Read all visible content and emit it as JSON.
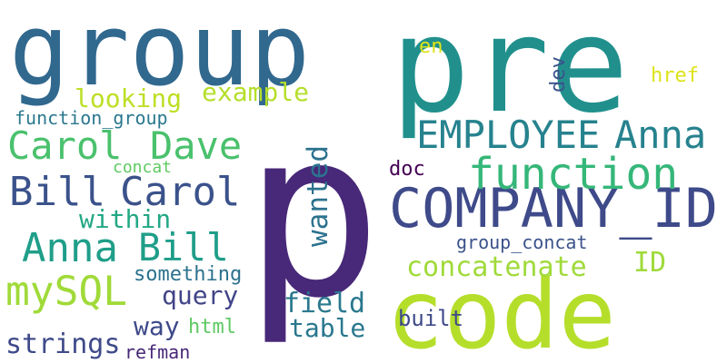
{
  "words": [
    {
      "text": "group",
      "color": "#31688e",
      "vertical": false
    },
    {
      "text": "pre",
      "color": "#21908d",
      "vertical": false
    },
    {
      "text": "p",
      "color": "#482878",
      "vertical": false
    },
    {
      "text": "code",
      "color": "#b5de2b",
      "vertical": false
    },
    {
      "text": "COMPANY_ID",
      "color": "#3e4a89",
      "vertical": false
    },
    {
      "text": "function",
      "color": "#35b779",
      "vertical": false
    },
    {
      "text": "EMPLOYEE",
      "color": "#26828e",
      "vertical": false
    },
    {
      "text": "Anna",
      "color": "#26828e",
      "vertical": false
    },
    {
      "text": "Carol",
      "color": "#4ac16d",
      "vertical": false
    },
    {
      "text": "Dave",
      "color": "#4ac16d",
      "vertical": false
    },
    {
      "text": "Bill",
      "color": "#3b528b",
      "vertical": false
    },
    {
      "text": "Carol",
      "color": "#3b528b",
      "vertical": false
    },
    {
      "text": "Anna",
      "color": "#1f9e89",
      "vertical": false
    },
    {
      "text": "Bill",
      "color": "#1f9e89",
      "vertical": false
    },
    {
      "text": "mySQL",
      "color": "#a0da39",
      "vertical": false
    },
    {
      "text": "wanted",
      "color": "#2c728e",
      "vertical": true
    },
    {
      "text": "concatenate",
      "color": "#a0da39",
      "vertical": false
    },
    {
      "text": "looking",
      "color": "#bddf26",
      "vertical": false
    },
    {
      "text": "example",
      "color": "#b5de2b",
      "vertical": false
    },
    {
      "text": "function_group",
      "color": "#2a788e",
      "vertical": false
    },
    {
      "text": "within",
      "color": "#22a884",
      "vertical": false
    },
    {
      "text": "concat",
      "color": "#5ec962",
      "vertical": false
    },
    {
      "text": "query",
      "color": "#414487",
      "vertical": false
    },
    {
      "text": "field",
      "color": "#2a788e",
      "vertical": false
    },
    {
      "text": "table",
      "color": "#2a788e",
      "vertical": false
    },
    {
      "text": "way",
      "color": "#3e4a89",
      "vertical": false
    },
    {
      "text": "strings",
      "color": "#3e4a89",
      "vertical": false
    },
    {
      "text": "something",
      "color": "#2c728e",
      "vertical": false
    },
    {
      "text": "html",
      "color": "#5ec962",
      "vertical": false
    },
    {
      "text": "refman",
      "color": "#482878",
      "vertical": false
    },
    {
      "text": "built",
      "color": "#3e4a89",
      "vertical": false
    },
    {
      "text": "doc",
      "color": "#440154",
      "vertical": false
    },
    {
      "text": "group_concat",
      "color": "#3b528b",
      "vertical": false
    },
    {
      "text": "ID",
      "color": "#9fda3a",
      "vertical": false
    },
    {
      "text": "en",
      "color": "#dde318",
      "vertical": false
    },
    {
      "text": "dev",
      "color": "#3b528b",
      "vertical": true
    },
    {
      "text": "href",
      "color": "#dde318",
      "vertical": false
    }
  ]
}
